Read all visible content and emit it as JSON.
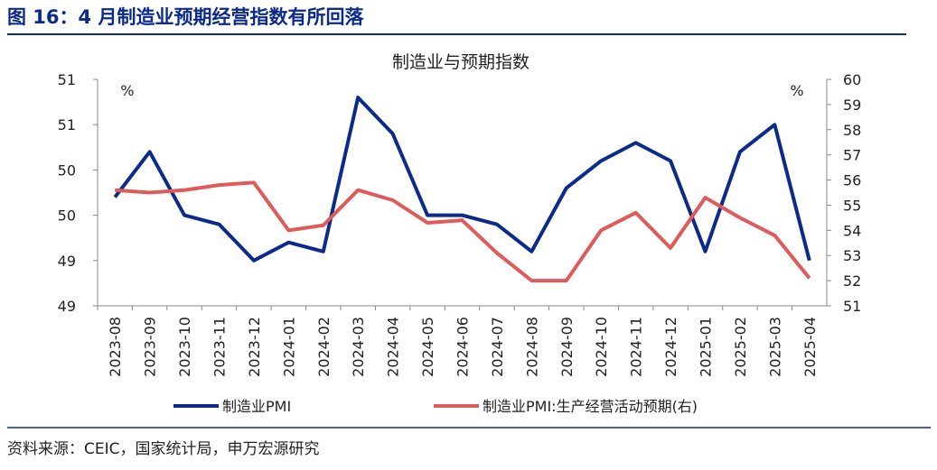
{
  "header": {
    "title": "图 16：4 月制造业预期经营指数有所回落"
  },
  "chart_data": {
    "type": "line",
    "title": "制造业与预期指数",
    "y_unit": "%",
    "y2_unit": "%",
    "categories": [
      "2023-08",
      "2023-09",
      "2023-10",
      "2023-11",
      "2023-12",
      "2024-01",
      "2024-02",
      "2024-03",
      "2024-04",
      "2024-05",
      "2024-06",
      "2024-07",
      "2024-08",
      "2024-09",
      "2024-10",
      "2024-11",
      "2024-12",
      "2025-01",
      "2025-02",
      "2025-03",
      "2025-04"
    ],
    "series": [
      {
        "name": "制造业PMI",
        "color": "#0b2a8c",
        "values": [
          49.7,
          50.2,
          49.5,
          49.4,
          49.0,
          49.2,
          49.1,
          50.8,
          50.4,
          49.5,
          49.5,
          49.4,
          49.1,
          49.8,
          50.1,
          50.3,
          50.1,
          49.1,
          50.2,
          50.5,
          49.0
        ]
      },
      {
        "name": "制造业PMI:生产经营活动预期(右)",
        "color": "#e05a5a",
        "axis": "y2",
        "values": [
          55.6,
          55.5,
          55.6,
          55.8,
          55.9,
          54.0,
          54.2,
          55.6,
          55.2,
          54.3,
          54.4,
          53.1,
          52.0,
          52.0,
          54.0,
          54.7,
          53.3,
          55.3,
          54.5,
          53.8,
          52.1
        ]
      }
    ],
    "ylim": [
      48.5,
      51
    ],
    "yticks": [
      {
        "value": 48.5,
        "label": "49"
      },
      {
        "value": 49,
        "label": "49"
      },
      {
        "value": 49.5,
        "label": "50"
      },
      {
        "value": 50,
        "label": "50"
      },
      {
        "value": 50.5,
        "label": "51"
      },
      {
        "value": 51,
        "label": "51"
      }
    ],
    "y2lim": [
      51,
      60
    ],
    "y2ticks": [
      51,
      52,
      53,
      54,
      55,
      56,
      57,
      58,
      59,
      60
    ]
  },
  "footer": {
    "source": "资料来源：CEIC，国家统计局，申万宏源研究"
  }
}
